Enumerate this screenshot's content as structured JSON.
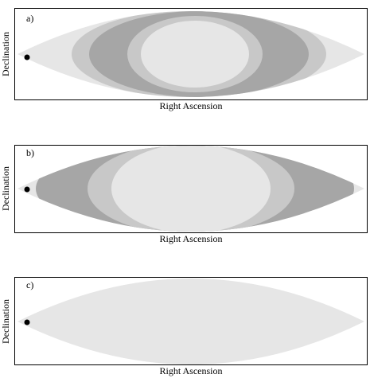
{
  "panels": [
    {
      "label": "a)",
      "xlabel": "Right Ascension",
      "ylabel": "Declination"
    },
    {
      "label": "b)",
      "xlabel": "Right Ascension",
      "ylabel": "Declination"
    },
    {
      "label": "c)",
      "xlabel": "Right Ascension",
      "ylabel": "Declination"
    }
  ]
}
